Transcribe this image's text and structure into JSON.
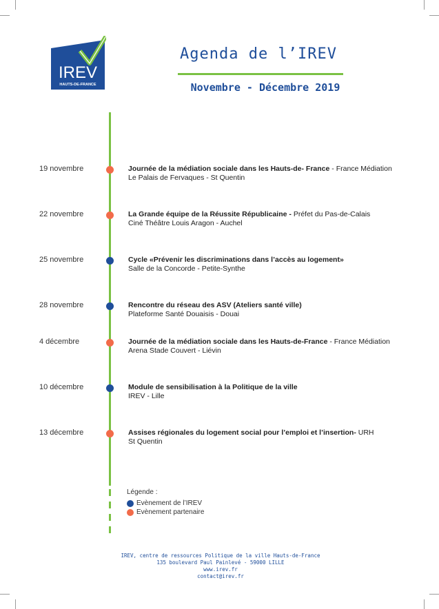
{
  "logo": {
    "name": "IREV",
    "region": "HAUTS-DE-FRANCE"
  },
  "header": {
    "title": "Agenda de l’IREV",
    "subtitle": "Novembre - Décembre 2019"
  },
  "colors": {
    "blue": "#1f4e9a",
    "orange": "#f26b4a",
    "green": "#7ac143"
  },
  "events": [
    {
      "date": "19 novembre",
      "type": "partenaire",
      "title": "Journée de la médiation sociale dans les Hauts-de- France",
      "org": " - France Médiation",
      "place": "Le Palais de Fervaques - St Quentin"
    },
    {
      "date": "22 novembre",
      "type": "partenaire",
      "title": "La Grande équipe de la Réussite Républicaine - ",
      "org": "Préfet du Pas-de-Calais",
      "place": "Ciné Théâtre Louis Aragon - Auchel"
    },
    {
      "date": "25 novembre",
      "type": "irev",
      "title": "Cycle «Prévenir les discriminations dans l’accès au logement»",
      "org": "",
      "place": "Salle de la Concorde - Petite-Synthe"
    },
    {
      "date": "28 novembre",
      "type": "irev",
      "title": "Rencontre du réseau des ASV (Ateliers santé ville)",
      "org": "",
      "place": "Plateforme Santé Douaisis - Douai"
    },
    {
      "date": "4 décembre",
      "type": "partenaire",
      "title": "Journée de la médiation sociale dans les Hauts-de-France",
      "org": " - France Médiation",
      "place": "Arena Stade Couvert - Liévin"
    },
    {
      "date": "10 décembre",
      "type": "irev",
      "title": "Module de sensibilisation à la Politique de la ville",
      "org": "",
      "place": "IREV - Lille"
    },
    {
      "date": "13 décembre",
      "type": "partenaire",
      "title": "Assises régionales du logement social pour l’emploi et l’insertion- ",
      "org": "URH",
      "place": "St Quentin"
    }
  ],
  "legend": {
    "label": "Légende :",
    "items": [
      {
        "type": "irev",
        "text": "Evènement de l’IREV"
      },
      {
        "type": "partenaire",
        "text": "Evènement partenaire"
      }
    ]
  },
  "footer": {
    "line1": "IREV, centre de ressources Politique de la ville Hauts-de-France",
    "line2": "135 boulevard Paul Painlevé - 59000 LILLE",
    "line3": "www.irev.fr",
    "line4": "contact@irev.fr"
  }
}
